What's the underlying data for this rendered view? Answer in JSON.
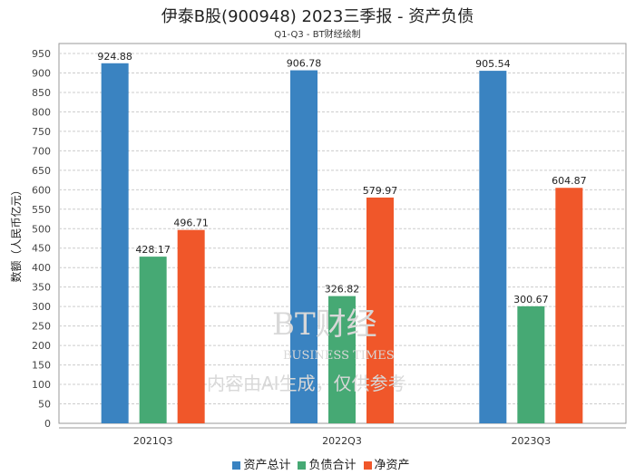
{
  "title": "伊泰B股(900948) 2023三季报 - 资产负债",
  "subtitle": "Q1-Q3 - BT财经绘制",
  "watermark": {
    "brand": "BT财经",
    "brand_en": "BUSINESS TIMES",
    "notice": "内容由AI生成，仅供参考"
  },
  "chart_data": {
    "type": "bar",
    "title": "伊泰B股(900948) 2023三季报 - 资产负债",
    "xlabel": "",
    "ylabel": "数额（人民币亿元）",
    "ylim": [
      0,
      950
    ],
    "ytick_step": 50,
    "grid": true,
    "legend_position": "bottom",
    "categories": [
      "2021Q3",
      "2022Q3",
      "2023Q3"
    ],
    "series": [
      {
        "name": "资产总计",
        "color": "#3a83c1",
        "values": [
          924.88,
          906.78,
          905.54
        ]
      },
      {
        "name": "负债合计",
        "color": "#46a974",
        "values": [
          428.17,
          326.82,
          300.67
        ]
      },
      {
        "name": "净资产",
        "color": "#f0572a",
        "values": [
          496.71,
          579.97,
          604.87
        ]
      }
    ]
  }
}
